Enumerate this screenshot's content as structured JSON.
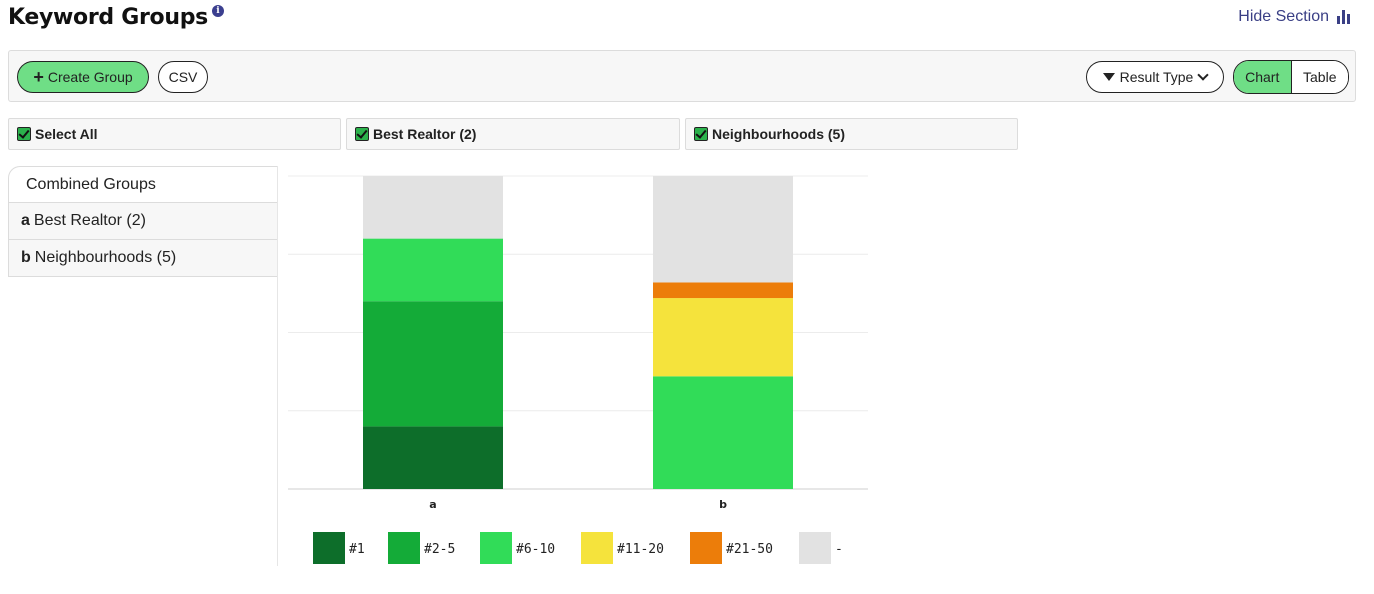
{
  "header": {
    "title": "Keyword Groups",
    "info_icon": "i",
    "hide_section_label": "Hide Section"
  },
  "toolbar": {
    "create_group_label": "Create Group",
    "csv_label": "CSV",
    "result_type_label": "Result Type",
    "view_toggle": {
      "chart_label": "Chart",
      "table_label": "Table",
      "selected": "Chart"
    }
  },
  "filters": [
    {
      "label": "Select All",
      "checked": true
    },
    {
      "label": "Best Realtor (2)",
      "checked": true
    },
    {
      "label": "Neighbourhoods (5)",
      "checked": true
    }
  ],
  "groups": {
    "active": "Combined Groups",
    "items": [
      {
        "key": "a",
        "label": "Best Realtor (2)"
      },
      {
        "key": "b",
        "label": "Neighbourhoods (5)"
      }
    ]
  },
  "colors": {
    "rank_1": "#0d6e2a",
    "rank_2_5": "#14ab38",
    "rank_6_10": "#31dc58",
    "rank_11_20": "#f5e33c",
    "rank_21_50": "#ec7d0a",
    "none": "#e2e2e2",
    "accent_green": "#6fde86",
    "link_blue": "#3a3f85"
  },
  "chart_data": {
    "type": "bar",
    "stacked": true,
    "categories": [
      "a",
      "b"
    ],
    "series": [
      {
        "name": "#1",
        "values": [
          0.2,
          0.0
        ]
      },
      {
        "name": "#2-5",
        "values": [
          0.4,
          0.0
        ]
      },
      {
        "name": "#6-10",
        "values": [
          0.2,
          0.36
        ]
      },
      {
        "name": "#11-20",
        "values": [
          0.0,
          0.25
        ]
      },
      {
        "name": "#21-50",
        "values": [
          0.0,
          0.05
        ]
      },
      {
        "name": "-",
        "values": [
          0.2,
          0.34
        ]
      }
    ],
    "ylim": [
      0,
      1
    ],
    "grid": true,
    "legend_position": "bottom",
    "xlabel": "",
    "ylabel": ""
  }
}
